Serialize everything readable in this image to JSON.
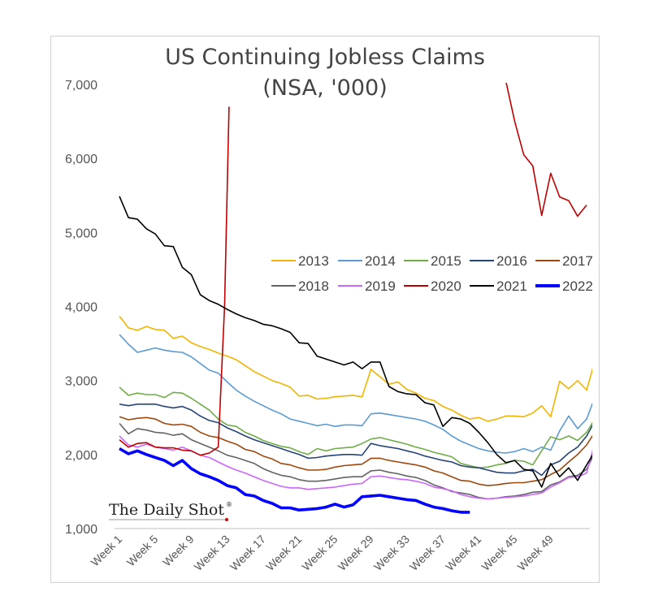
{
  "chart_data": {
    "type": "line",
    "title": "US Continuing Jobless Claims",
    "subtitle": "(NSA, '000)",
    "xlabel": "",
    "ylabel": "",
    "ylim": [
      1000,
      7000
    ],
    "yticks": [
      "1,000",
      "2,000",
      "3,000",
      "4,000",
      "5,000",
      "6,000",
      "7,000"
    ],
    "x_tick_labels": [
      "Week 1",
      "Week 5",
      "Week 9",
      "Week 13",
      "Week 17",
      "Week 21",
      "Week 25",
      "Week 29",
      "Week 33",
      "Week 37",
      "Week 41",
      "Week 45",
      "Week 49"
    ],
    "x_tick_weeks": [
      1,
      5,
      9,
      13,
      17,
      21,
      25,
      29,
      33,
      37,
      41,
      45,
      49
    ],
    "grid": false,
    "legend_position": "center-right",
    "series": [
      {
        "name": "2013",
        "color": "#F2B400",
        "width": 1.6,
        "values": [
          3870,
          3710,
          3680,
          3730,
          3690,
          3680,
          3570,
          3600,
          3510,
          3460,
          3420,
          3370,
          3330,
          3280,
          3200,
          3120,
          3060,
          3000,
          2960,
          2910,
          2790,
          2800,
          2750,
          2760,
          2780,
          2790,
          2800,
          2780,
          3150,
          3050,
          2950,
          2980,
          2880,
          2830,
          2760,
          2730,
          2650,
          2600,
          2530,
          2480,
          2500,
          2450,
          2480,
          2520,
          2520,
          2510,
          2560,
          2660,
          2510,
          2990,
          2890,
          3000,
          2870,
          3300
        ]
      },
      {
        "name": "2014",
        "color": "#5B9BD5",
        "width": 1.6,
        "values": [
          3620,
          3490,
          3380,
          3410,
          3440,
          3410,
          3390,
          3380,
          3320,
          3230,
          3140,
          3100,
          2980,
          2870,
          2790,
          2720,
          2660,
          2600,
          2550,
          2480,
          2450,
          2420,
          2390,
          2410,
          2380,
          2400,
          2400,
          2390,
          2550,
          2560,
          2540,
          2520,
          2500,
          2480,
          2450,
          2400,
          2340,
          2250,
          2180,
          2130,
          2080,
          2050,
          2030,
          2020,
          2040,
          2080,
          2040,
          2100,
          2060,
          2320,
          2520,
          2350,
          2480,
          2800
        ]
      },
      {
        "name": "2015",
        "color": "#70AD47",
        "width": 1.6,
        "values": [
          2910,
          2800,
          2830,
          2810,
          2810,
          2770,
          2840,
          2830,
          2760,
          2680,
          2600,
          2480,
          2400,
          2380,
          2300,
          2250,
          2190,
          2150,
          2110,
          2090,
          2040,
          2000,
          2080,
          2050,
          2080,
          2090,
          2100,
          2150,
          2210,
          2230,
          2200,
          2170,
          2140,
          2100,
          2070,
          2030,
          2000,
          1970,
          1880,
          1850,
          1820,
          1830,
          1860,
          1880,
          1920,
          1910,
          1860,
          2050,
          2240,
          2200,
          2250,
          2190,
          2300,
          2500
        ]
      },
      {
        "name": "2016",
        "color": "#264478",
        "width": 1.6,
        "values": [
          2680,
          2660,
          2680,
          2680,
          2680,
          2650,
          2630,
          2650,
          2600,
          2520,
          2460,
          2430,
          2360,
          2310,
          2250,
          2200,
          2160,
          2120,
          2080,
          2040,
          2000,
          1950,
          1960,
          1980,
          1990,
          2000,
          2000,
          1990,
          2150,
          2120,
          2100,
          2080,
          2050,
          2020,
          1980,
          1950,
          1920,
          1900,
          1850,
          1830,
          1820,
          1790,
          1760,
          1750,
          1750,
          1780,
          1800,
          1720,
          1860,
          1910,
          2020,
          2100,
          2250,
          2470
        ]
      },
      {
        "name": "2017",
        "color": "#9E480E",
        "width": 1.6,
        "values": [
          2510,
          2470,
          2490,
          2500,
          2480,
          2420,
          2400,
          2410,
          2380,
          2300,
          2250,
          2230,
          2180,
          2140,
          2070,
          2040,
          1980,
          1940,
          1880,
          1860,
          1820,
          1790,
          1790,
          1800,
          1830,
          1850,
          1860,
          1870,
          1950,
          1950,
          1920,
          1900,
          1880,
          1860,
          1830,
          1780,
          1750,
          1700,
          1650,
          1640,
          1600,
          1580,
          1590,
          1610,
          1620,
          1620,
          1640,
          1660,
          1730,
          1790,
          1900,
          2000,
          2130,
          2320
        ]
      },
      {
        "name": "2018",
        "color": "#636363",
        "width": 1.6,
        "values": [
          2420,
          2280,
          2350,
          2330,
          2300,
          2290,
          2260,
          2280,
          2200,
          2150,
          2100,
          2050,
          1990,
          1960,
          1920,
          1880,
          1810,
          1760,
          1720,
          1700,
          1660,
          1640,
          1640,
          1650,
          1670,
          1690,
          1700,
          1700,
          1780,
          1790,
          1760,
          1740,
          1710,
          1690,
          1650,
          1590,
          1550,
          1500,
          1480,
          1460,
          1420,
          1400,
          1410,
          1430,
          1440,
          1460,
          1490,
          1500,
          1590,
          1630,
          1700,
          1720,
          1800,
          2050
        ]
      },
      {
        "name": "2019",
        "color": "#CC66FF",
        "width": 1.6,
        "values": [
          2250,
          2130,
          2100,
          2140,
          2100,
          2080,
          2060,
          2100,
          2050,
          1990,
          1960,
          1900,
          1840,
          1790,
          1750,
          1700,
          1650,
          1610,
          1570,
          1550,
          1550,
          1530,
          1540,
          1550,
          1560,
          1580,
          1600,
          1610,
          1700,
          1710,
          1690,
          1670,
          1660,
          1640,
          1610,
          1560,
          1540,
          1510,
          1460,
          1430,
          1410,
          1400,
          1410,
          1420,
          1430,
          1440,
          1460,
          1480,
          1560,
          1620,
          1690,
          1700,
          1750,
          2200
        ]
      },
      {
        "name": "2020",
        "color": "#C00000",
        "width": 1.6,
        "values": [
          2200,
          2100,
          2150,
          2160,
          2100,
          2090,
          2090,
          2060,
          2050,
          1990,
          2020,
          2100,
          null,
          null,
          null,
          null,
          null,
          null,
          null,
          null,
          null,
          null,
          null,
          null,
          null,
          null,
          null,
          null,
          null,
          null,
          null,
          null,
          null,
          null,
          null,
          null,
          null,
          null,
          null,
          null,
          null,
          null,
          null,
          7050,
          6500,
          6050,
          5900,
          5230,
          5800,
          5480,
          5430,
          5220,
          5370,
          null
        ],
        "extra_points": [
          {
            "week": 12.7,
            "value": 4000
          },
          {
            "week": 13.2,
            "value": 6700
          }
        ]
      },
      {
        "name": "2021",
        "color": "#000000",
        "width": 1.6,
        "values": [
          5490,
          5200,
          5180,
          5050,
          4980,
          4820,
          4810,
          4530,
          4430,
          4160,
          4080,
          4030,
          3960,
          3900,
          3850,
          3810,
          3760,
          3740,
          3700,
          3650,
          3510,
          3500,
          3330,
          3290,
          3250,
          3210,
          3250,
          3160,
          3250,
          3250,
          2920,
          2850,
          2820,
          2810,
          2700,
          2670,
          2380,
          2500,
          2480,
          2420,
          2300,
          2160,
          2000,
          1890,
          1920,
          1800,
          1780,
          1560,
          1880,
          1700,
          1820,
          1650,
          1860,
          2060
        ]
      },
      {
        "name": "2022",
        "color": "#0000FF",
        "width": 3.6,
        "values": [
          2080,
          2010,
          2050,
          2000,
          1960,
          1920,
          1850,
          1920,
          1810,
          1740,
          1700,
          1650,
          1580,
          1550,
          1460,
          1440,
          1380,
          1340,
          1280,
          1280,
          1250,
          1260,
          1270,
          1290,
          1330,
          1290,
          1320,
          1430,
          1440,
          1450,
          1430,
          1410,
          1390,
          1380,
          1330,
          1290,
          1270,
          1240,
          1220,
          1220
        ]
      }
    ]
  },
  "branding": {
    "text": "The Daily Shot",
    "mark": "®"
  }
}
